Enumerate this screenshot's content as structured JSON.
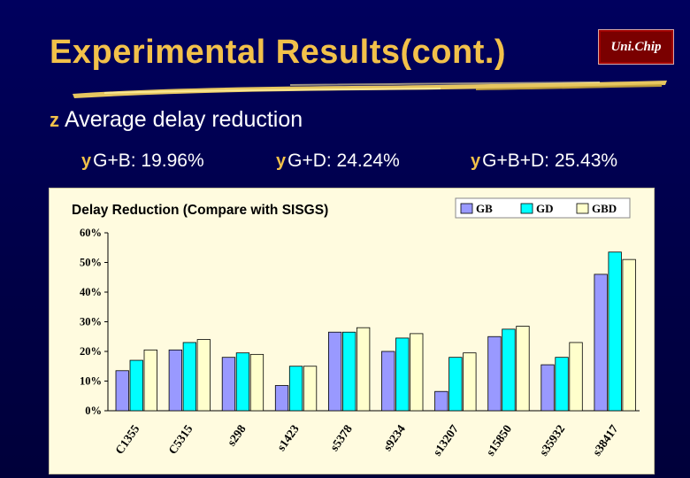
{
  "slide": {
    "title": "Experimental Results(cont.)",
    "logo_text": "Uni.Chip",
    "bullet_glyph": "z",
    "sub_glyph": "y",
    "main_bullet": "Average delay reduction",
    "sub_bullets": [
      "G+B: 19.96%",
      "G+D: 24.24%",
      "G+B+D: 25.43%"
    ],
    "colors": {
      "background": "#000050",
      "title": "#f2c14a",
      "text": "#ffffff",
      "accent": "#f2c14a"
    }
  },
  "chart_data": {
    "type": "bar",
    "title": "Delay Reduction (Compare with SISGS)",
    "categories": [
      "C1355",
      "C5315",
      "s298",
      "s1423",
      "s5378",
      "s9234",
      "s13207",
      "s15850",
      "s35932",
      "s38417"
    ],
    "series": [
      {
        "name": "GB",
        "color": "#9999ff",
        "values": [
          13.5,
          20.5,
          18,
          8.5,
          26.5,
          20,
          6.5,
          25,
          15.5,
          46
        ]
      },
      {
        "name": "GD",
        "color": "#00ffff",
        "values": [
          17,
          23,
          19.5,
          15,
          26.5,
          24.5,
          18,
          27.5,
          18,
          53.5
        ]
      },
      {
        "name": "GBD",
        "color": "#ffffcc",
        "values": [
          20.5,
          24,
          19,
          15,
          28,
          26,
          19.5,
          28.5,
          23,
          51
        ]
      }
    ],
    "ylim": [
      0,
      60
    ],
    "yticks": [
      "0%",
      "10%",
      "20%",
      "30%",
      "40%",
      "50%",
      "60%"
    ],
    "legend_position": "top-right",
    "grid": false
  }
}
